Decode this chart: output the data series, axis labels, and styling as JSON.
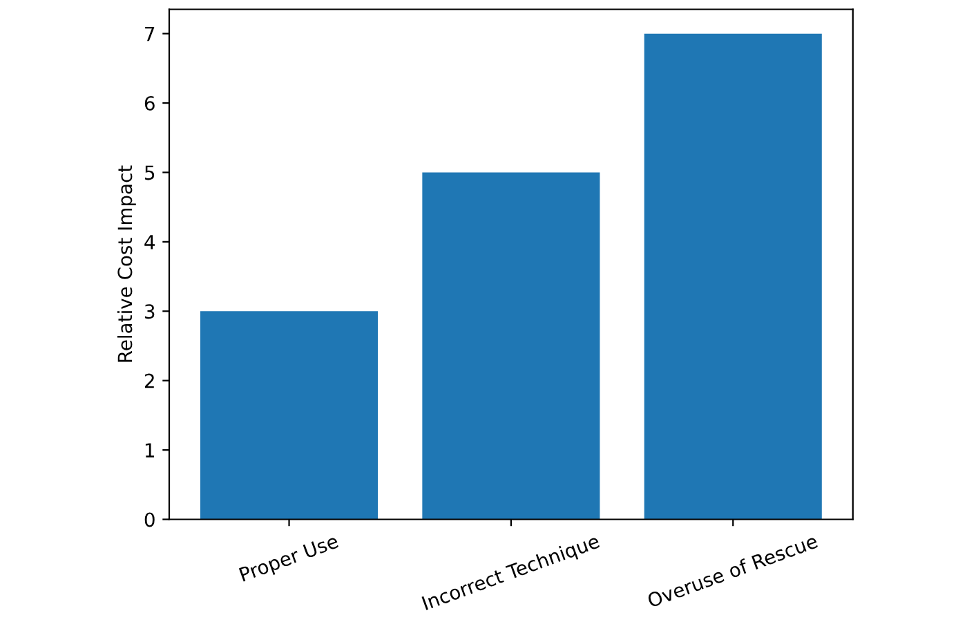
{
  "chart_data": {
    "type": "bar",
    "ylabel": "Relative Cost Impact",
    "categories": [
      "Proper Use",
      "Incorrect Technique",
      "Overuse of Rescue"
    ],
    "values": [
      3,
      5,
      7
    ],
    "color": "#1f77b4",
    "ylim": [
      0,
      7.35
    ],
    "yticks": [
      0,
      1,
      2,
      3,
      4,
      5,
      6,
      7
    ],
    "grid": false
  }
}
